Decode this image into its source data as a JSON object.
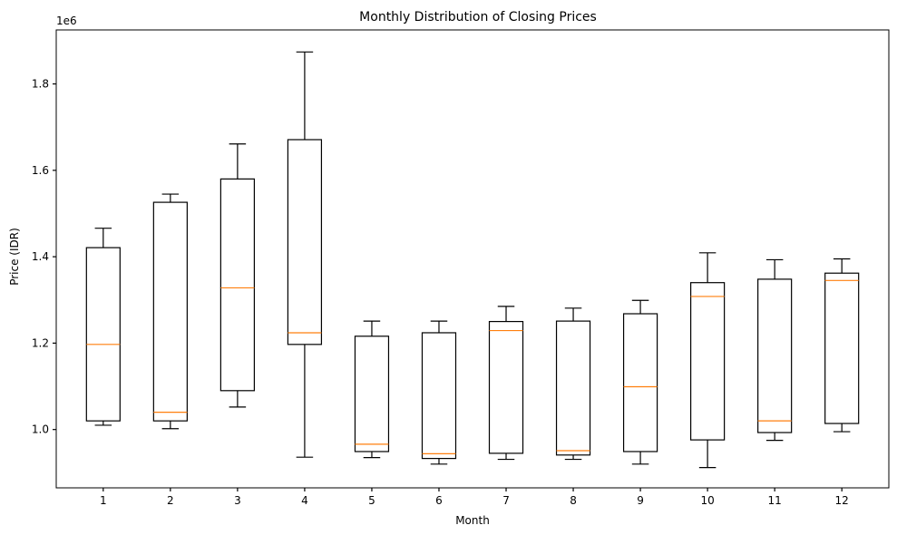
{
  "chart_data": {
    "type": "boxplot",
    "title": "Monthly Distribution of Closing Prices",
    "xlabel": "Month",
    "ylabel": "Price (IDR)",
    "y_offset_label": "1e6",
    "y_scale": 1000000,
    "ylim": [
      0.865,
      1.925
    ],
    "yticks": [
      1.0,
      1.2,
      1.4,
      1.6,
      1.8
    ],
    "ytick_labels": [
      "1.0",
      "1.2",
      "1.4",
      "1.6",
      "1.8"
    ],
    "categories": [
      "1",
      "2",
      "3",
      "4",
      "5",
      "6",
      "7",
      "8",
      "9",
      "10",
      "11",
      "12"
    ],
    "boxes": [
      {
        "whislo": 1.01,
        "q1": 1.02,
        "med": 1.197,
        "q3": 1.421,
        "whishi": 1.466
      },
      {
        "whislo": 1.002,
        "q1": 1.02,
        "med": 1.04,
        "q3": 1.526,
        "whishi": 1.545
      },
      {
        "whislo": 1.052,
        "q1": 1.09,
        "med": 1.328,
        "q3": 1.58,
        "whishi": 1.661
      },
      {
        "whislo": 0.936,
        "q1": 1.197,
        "med": 1.224,
        "q3": 1.671,
        "whishi": 1.874
      },
      {
        "whislo": 0.935,
        "q1": 0.949,
        "med": 0.966,
        "q3": 1.216,
        "whishi": 1.251
      },
      {
        "whislo": 0.92,
        "q1": 0.933,
        "med": 0.944,
        "q3": 1.224,
        "whishi": 1.251
      },
      {
        "whislo": 0.931,
        "q1": 0.945,
        "med": 1.229,
        "q3": 1.25,
        "whishi": 1.285
      },
      {
        "whislo": 0.931,
        "q1": 0.941,
        "med": 0.951,
        "q3": 1.251,
        "whishi": 1.281
      },
      {
        "whislo": 0.92,
        "q1": 0.949,
        "med": 1.099,
        "q3": 1.268,
        "whishi": 1.299
      },
      {
        "whislo": 0.912,
        "q1": 0.976,
        "med": 1.308,
        "q3": 1.34,
        "whishi": 1.409
      },
      {
        "whislo": 0.975,
        "q1": 0.993,
        "med": 1.02,
        "q3": 1.348,
        "whishi": 1.393
      },
      {
        "whislo": 0.995,
        "q1": 1.014,
        "med": 1.345,
        "q3": 1.362,
        "whishi": 1.395
      }
    ],
    "colors": {
      "box": "#000000",
      "median": "#ff7f0e"
    },
    "grid": false,
    "legend": "none"
  }
}
